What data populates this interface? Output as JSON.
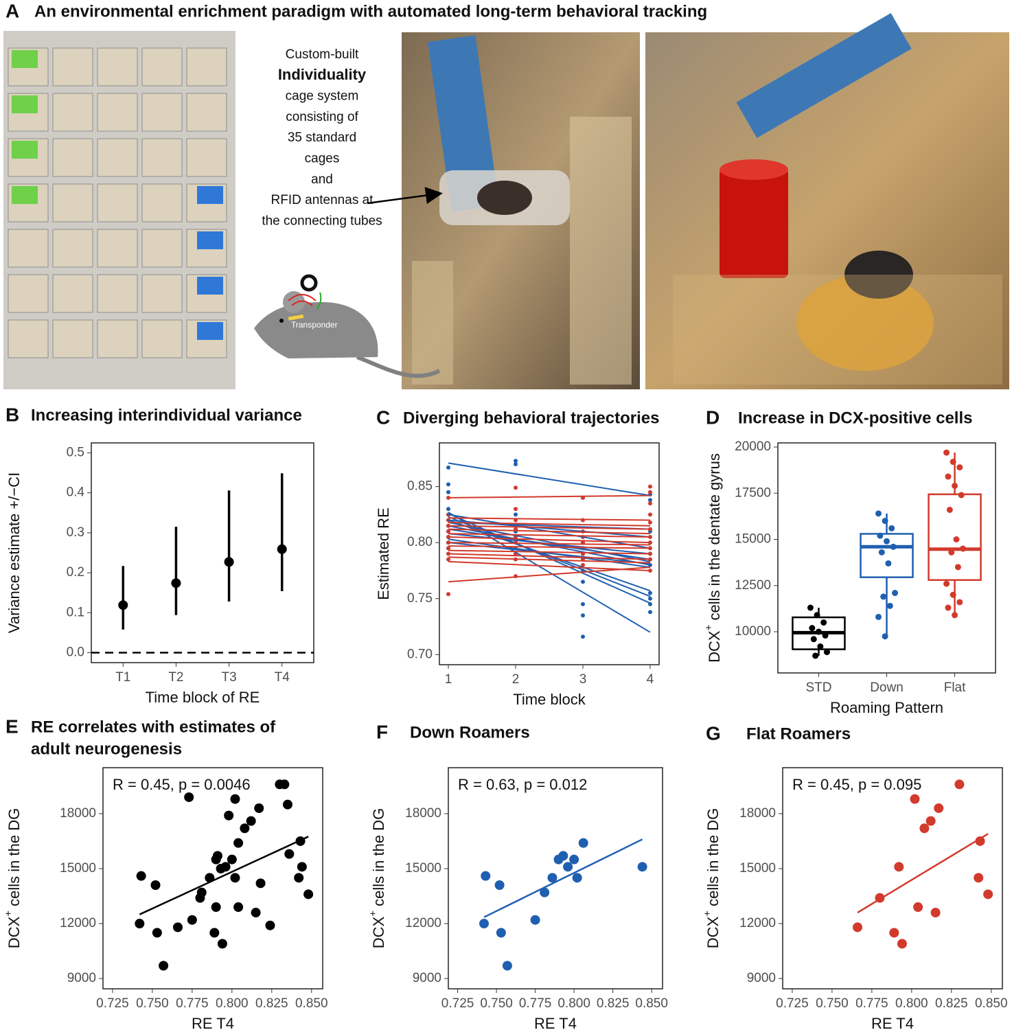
{
  "panel_a": {
    "label": "A",
    "title": "An environmental enrichment paradigm with automated long-term behavioral tracking",
    "description": [
      "Custom-built",
      "Individuality",
      "cage system",
      "consisting of",
      "35 standard",
      "cages",
      "and",
      "RFID antennas at",
      "the connecting tubes"
    ],
    "mouse_label": "Transponder"
  },
  "chart_data": [
    {
      "type": "errorbar",
      "label": "B",
      "title": "Increasing interindividual variance",
      "categories": [
        "T1",
        "T2",
        "T3",
        "T4"
      ],
      "values": [
        0.119,
        0.174,
        0.227,
        0.259
      ],
      "lower": [
        0.058,
        0.094,
        0.128,
        0.154
      ],
      "upper": [
        0.217,
        0.315,
        0.406,
        0.449
      ],
      "color": "#000000",
      "ylim": [
        -0.025,
        0.525
      ],
      "yticks": [
        {
          "value": 0,
          "label": "0.0"
        },
        0.1,
        0.2,
        0.3,
        0.4,
        0.5
      ],
      "hline": 0,
      "xlabel": "Time block of RE",
      "ylabel": "Variance estimate +/−CI"
    },
    {
      "type": "trajectory",
      "label": "C",
      "title": "Diverging behavioral trajectories",
      "line_x": [
        1,
        4
      ],
      "groups": [
        {
          "color": "#1f5fb0",
          "lines": [
            [
              0.871,
              0.842
            ],
            [
              0.827,
              0.72
            ],
            [
              0.826,
              0.746
            ],
            [
              0.823,
              0.752
            ],
            [
              0.82,
              0.757
            ],
            [
              0.818,
              0.783
            ],
            [
              0.815,
              0.78
            ],
            [
              0.812,
              0.785
            ],
            [
              0.808,
              0.79
            ],
            [
              0.803,
              0.778
            ],
            [
              0.8,
              0.781
            ],
            [
              0.825,
              0.795
            ],
            [
              0.82,
              0.805
            ],
            [
              0.818,
              0.812
            ]
          ],
          "points_x": [
            1,
            1,
            1,
            1,
            1,
            1,
            1,
            1,
            1,
            1,
            1,
            2,
            2,
            2,
            2,
            2,
            2,
            2,
            2,
            2,
            3,
            3,
            3,
            3,
            3,
            3,
            3,
            3,
            3,
            4,
            4,
            4,
            4,
            4,
            4,
            4,
            4,
            4,
            4,
            4
          ],
          "points_y": [
            0.867,
            0.852,
            0.845,
            0.83,
            0.825,
            0.82,
            0.815,
            0.81,
            0.805,
            0.8,
            0.795,
            0.873,
            0.87,
            0.825,
            0.815,
            0.81,
            0.805,
            0.8,
            0.795,
            0.79,
            0.84,
            0.8,
            0.795,
            0.79,
            0.775,
            0.765,
            0.745,
            0.735,
            0.716,
            0.843,
            0.838,
            0.81,
            0.8,
            0.79,
            0.785,
            0.78,
            0.755,
            0.75,
            0.745,
            0.738
          ]
        },
        {
          "color": "#d23a2c",
          "lines": [
            [
              0.84,
              0.842
            ],
            [
              0.822,
              0.82
            ],
            [
              0.818,
              0.815
            ],
            [
              0.815,
              0.812
            ],
            [
              0.812,
              0.808
            ],
            [
              0.808,
              0.805
            ],
            [
              0.805,
              0.8
            ],
            [
              0.8,
              0.798
            ],
            [
              0.797,
              0.795
            ],
            [
              0.793,
              0.79
            ],
            [
              0.79,
              0.785
            ],
            [
              0.787,
              0.782
            ],
            [
              0.783,
              0.775
            ],
            [
              0.765,
              0.778
            ]
          ],
          "points_x": [
            1,
            1,
            1,
            1,
            1,
            1,
            1,
            1,
            1,
            1,
            1,
            2,
            2,
            2,
            2,
            2,
            2,
            2,
            2,
            2,
            2,
            3,
            3,
            3,
            3,
            3,
            3,
            3,
            3,
            3,
            4,
            4,
            4,
            4,
            4,
            4,
            4,
            4,
            4,
            4,
            4,
            4
          ],
          "points_y": [
            0.84,
            0.825,
            0.82,
            0.815,
            0.81,
            0.805,
            0.8,
            0.795,
            0.79,
            0.785,
            0.754,
            0.849,
            0.83,
            0.82,
            0.812,
            0.805,
            0.8,
            0.795,
            0.79,
            0.785,
            0.77,
            0.84,
            0.82,
            0.81,
            0.805,
            0.8,
            0.795,
            0.79,
            0.785,
            0.78,
            0.85,
            0.845,
            0.835,
            0.825,
            0.818,
            0.812,
            0.805,
            0.8,
            0.795,
            0.79,
            0.785,
            0.775
          ]
        }
      ],
      "xlim": [
        0.867,
        4.133
      ],
      "xticks": [
        1,
        2,
        3,
        4
      ],
      "ylim": [
        0.691,
        0.889
      ],
      "yticks": [
        {
          "value": 0.7,
          "label": "0.70"
        },
        0.75,
        {
          "value": 0.8,
          "label": "0.80"
        },
        0.85
      ],
      "xlabel": "Time block",
      "ylabel": "Estimated RE"
    },
    {
      "type": "box",
      "label": "D",
      "title": "Increase in DCX-positive cells",
      "categories": [
        "STD",
        "Down",
        "Flat"
      ],
      "colors": [
        "#000000",
        "#1f5fb0",
        "#d23a2c"
      ],
      "low": [
        8700,
        9750,
        10900
      ],
      "q1": [
        9050,
        12950,
        12800
      ],
      "median": [
        9950,
        14600,
        14470
      ],
      "q3": [
        10780,
        15300,
        17440
      ],
      "high": [
        11300,
        16400,
        19700
      ],
      "points": [
        [
          11300,
          10900,
          10500,
          10200,
          10000,
          9800,
          9600,
          9200,
          8900,
          8700
        ],
        [
          16400,
          16000,
          15600,
          15200,
          14900,
          14600,
          14300,
          13700,
          12100,
          11900,
          11400,
          10800,
          9750
        ],
        [
          19700,
          19200,
          18900,
          18400,
          17900,
          17400,
          16600,
          15000,
          14500,
          14300,
          13500,
          12600,
          12000,
          11600,
          11300,
          10900
        ]
      ],
      "ylim": [
        7770,
        20223
      ],
      "yticks": [
        10000,
        12500,
        15000,
        17500,
        20000
      ],
      "xlabel": "Roaming Pattern",
      "ylabel": {
        "base": "DCX",
        "sup": "+",
        "rest": " cells in the dentate gyrus"
      }
    },
    {
      "type": "scatter",
      "label": "E",
      "title": [
        "RE correlates with estimates of",
        "adult neurogenesis"
      ],
      "annotation": "R = 0.45, p = 0.0046",
      "color": "#000000",
      "x": [
        0.742,
        0.743,
        0.752,
        0.753,
        0.757,
        0.766,
        0.773,
        0.775,
        0.78,
        0.781,
        0.786,
        0.789,
        0.79,
        0.79,
        0.791,
        0.793,
        0.794,
        0.796,
        0.798,
        0.8,
        0.802,
        0.802,
        0.804,
        0.804,
        0.808,
        0.812,
        0.815,
        0.817,
        0.818,
        0.824,
        0.83,
        0.833,
        0.835,
        0.836,
        0.842,
        0.843,
        0.844,
        0.848
      ],
      "y": [
        12000,
        14600,
        14100,
        11500,
        9700,
        11800,
        18900,
        12200,
        13400,
        13700,
        14500,
        11500,
        12900,
        15500,
        15700,
        15000,
        10900,
        15100,
        17900,
        15500,
        14500,
        18800,
        12900,
        16400,
        17200,
        17600,
        12600,
        18300,
        14200,
        11900,
        19600,
        19600,
        18500,
        15800,
        14500,
        16500,
        15100,
        13600
      ],
      "fit": {
        "x": [
          0.742,
          0.848
        ],
        "y": [
          12500,
          16750
        ]
      },
      "xlim": [
        0.719,
        0.857
      ],
      "xticks": [
        0.725,
        {
          "value": 0.75,
          "label": "0.750"
        },
        0.775,
        {
          "value": 0.8,
          "label": "0.800"
        },
        0.825,
        {
          "value": 0.85,
          "label": "0.850"
        }
      ],
      "ylim": [
        8440,
        20510
      ],
      "yticks": [
        9000,
        12000,
        15000,
        18000
      ],
      "xlabel": "RE T4",
      "ylabel": {
        "base": "DCX",
        "sup": "+",
        "rest": " cells in the DG"
      }
    },
    {
      "type": "scatter",
      "label": "F",
      "title": [
        "Down Roamers"
      ],
      "annotation": "R = 0.63, p = 0.012",
      "color": "#1f5fb0",
      "x": [
        0.742,
        0.743,
        0.752,
        0.753,
        0.757,
        0.775,
        0.781,
        0.786,
        0.79,
        0.793,
        0.796,
        0.8,
        0.802,
        0.806,
        0.844
      ],
      "y": [
        12000,
        14600,
        14100,
        11500,
        9700,
        12200,
        13700,
        14500,
        15500,
        15700,
        15100,
        15500,
        14500,
        16400,
        15100
      ],
      "fit": {
        "x": [
          0.742,
          0.844
        ],
        "y": [
          12350,
          16600
        ]
      },
      "xlim": [
        0.719,
        0.857
      ],
      "xticks": [
        0.725,
        {
          "value": 0.75,
          "label": "0.750"
        },
        0.775,
        {
          "value": 0.8,
          "label": "0.800"
        },
        0.825,
        {
          "value": 0.85,
          "label": "0.850"
        }
      ],
      "ylim": [
        8440,
        20510
      ],
      "yticks": [
        9000,
        12000,
        15000,
        18000
      ],
      "xlabel": "RE T4",
      "ylabel": {
        "base": "DCX",
        "sup": "+",
        "rest": " cells in the DG"
      }
    },
    {
      "type": "scatter",
      "label": "G",
      "title": [
        "Flat Roamers"
      ],
      "annotation": "R = 0.45, p = 0.095",
      "color": "#d23a2c",
      "x": [
        0.766,
        0.78,
        0.789,
        0.792,
        0.794,
        0.802,
        0.804,
        0.808,
        0.812,
        0.815,
        0.817,
        0.83,
        0.842,
        0.843,
        0.848
      ],
      "y": [
        11800,
        13400,
        11500,
        15100,
        10900,
        18800,
        12900,
        17200,
        17600,
        12600,
        18300,
        19600,
        14500,
        16500,
        13600
      ],
      "fit": {
        "x": [
          0.766,
          0.848
        ],
        "y": [
          12600,
          16900
        ]
      },
      "xlim": [
        0.719,
        0.857
      ],
      "xticks": [
        0.725,
        {
          "value": 0.75,
          "label": "0.750"
        },
        0.775,
        {
          "value": 0.8,
          "label": "0.800"
        },
        0.825,
        {
          "value": 0.85,
          "label": "0.850"
        }
      ],
      "ylim": [
        8440,
        20510
      ],
      "yticks": [
        9000,
        12000,
        15000,
        18000
      ],
      "xlabel": "RE T4",
      "ylabel": {
        "base": "DCX",
        "sup": "+",
        "rest": " cells in the DG"
      }
    }
  ]
}
